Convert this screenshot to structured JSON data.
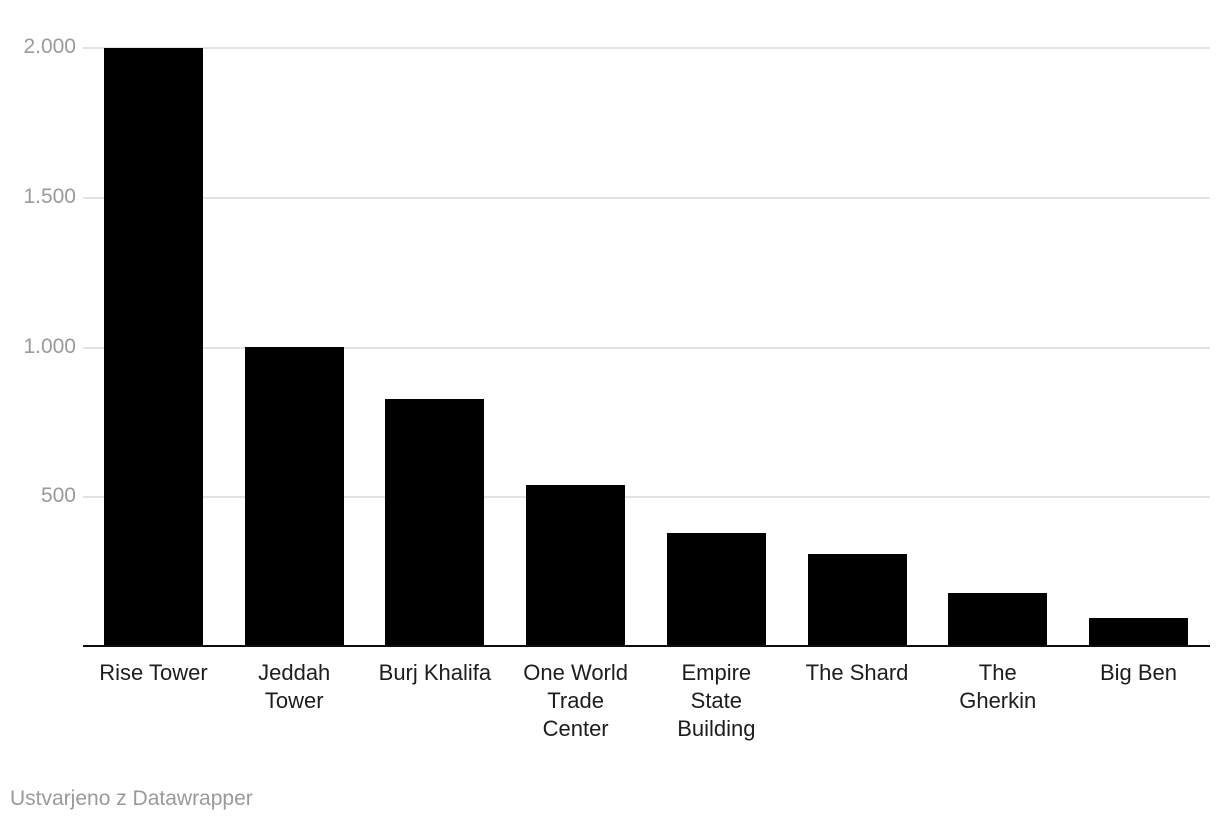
{
  "chart_data": {
    "type": "bar",
    "title": "",
    "xlabel": "",
    "ylabel": "",
    "categories": [
      "Rise Tower",
      "Jeddah Tower",
      "Burj Khalifa",
      "One World Trade Center",
      "Empire State Building",
      "The Shard",
      "The Gherkin",
      "Big Ben"
    ],
    "category_label_lines": [
      [
        "Rise Tower"
      ],
      [
        "Jeddah",
        "Tower"
      ],
      [
        "Burj Khalifa"
      ],
      [
        "One World",
        "Trade",
        "Center"
      ],
      [
        "Empire",
        "State",
        "Building"
      ],
      [
        "The Shard"
      ],
      [
        "The",
        "Gherkin"
      ],
      [
        "Big Ben"
      ]
    ],
    "values": [
      2000,
      1000,
      828,
      541,
      381,
      310,
      180,
      96
    ],
    "y_ticks": [
      {
        "value": 500,
        "label": "500"
      },
      {
        "value": 1000,
        "label": "1.000"
      },
      {
        "value": 1500,
        "label": "1.500"
      },
      {
        "value": 2000,
        "label": "2.000"
      }
    ],
    "ylim": [
      0,
      2000
    ],
    "grid": true,
    "legend": "none",
    "bar_color": "#000000"
  },
  "footer": {
    "attribution": "Ustvarjeno z Datawrapper"
  },
  "colors": {
    "background": "#ffffff",
    "bar": "#000000",
    "gridline": "#e2e2e2",
    "baseline": "#0d0d0d",
    "axis_tick_label": "#9a9a9a",
    "category_label": "#1d1d1d",
    "attribution": "#9a9a9a"
  }
}
